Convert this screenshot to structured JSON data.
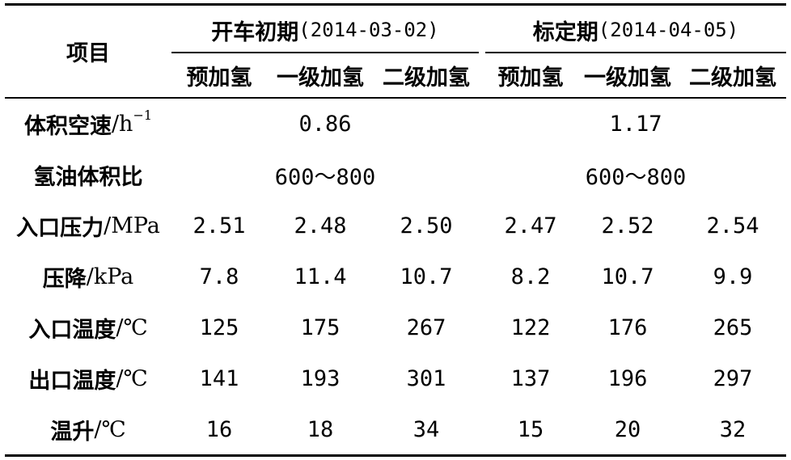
{
  "table": {
    "corner_header": "项目",
    "groups": [
      {
        "name": "开车初期",
        "date": "(2014-03-02)"
      },
      {
        "name": "标定期",
        "date": "(2014-04-05)"
      }
    ],
    "subheaders": [
      "预加氢",
      "一级加氢",
      "二级加氢",
      "预加氢",
      "一级加氢",
      "二级加氢"
    ],
    "rows": [
      {
        "label": "体积空速",
        "unit": "/h",
        "sup": "−1",
        "merged": [
          "0.86",
          "1.17"
        ]
      },
      {
        "label": "氢油体积比",
        "unit": "",
        "merged": [
          "600～800",
          "600～800"
        ]
      },
      {
        "label": "入口压力",
        "unit": "/MPa",
        "values": [
          "2.51",
          "2.48",
          "2.50",
          "2.47",
          "2.52",
          "2.54"
        ]
      },
      {
        "label": "压降",
        "unit": "/kPa",
        "values": [
          "7.8",
          "11.4",
          "10.7",
          "8.2",
          "10.7",
          "9.9"
        ]
      },
      {
        "label": "入口温度",
        "unit": "/℃",
        "values": [
          "125",
          "175",
          "267",
          "122",
          "176",
          "265"
        ]
      },
      {
        "label": "出口温度",
        "unit": "/℃",
        "values": [
          "141",
          "193",
          "301",
          "137",
          "196",
          "297"
        ]
      },
      {
        "label": "温升",
        "unit": "/℃",
        "values": [
          "16",
          "18",
          "34",
          "15",
          "20",
          "32"
        ]
      }
    ]
  }
}
